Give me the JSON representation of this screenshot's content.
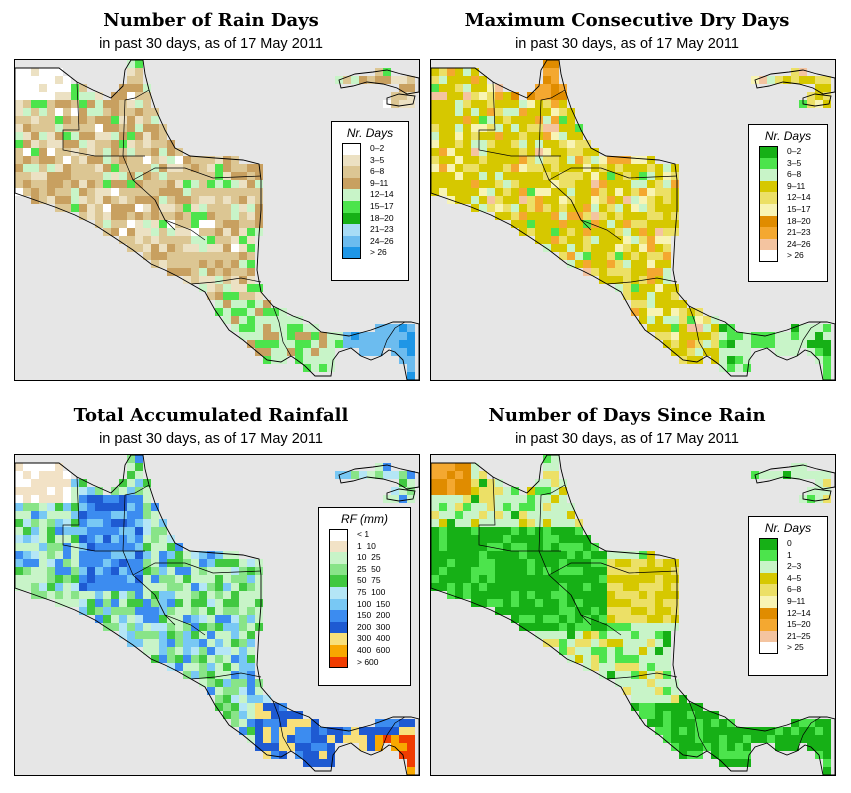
{
  "panels": [
    {
      "id": "rain-days",
      "title": "Number of Rain Days",
      "subtitle": "in past 30 days, as of  17 May 2011",
      "legend": {
        "title": "Nr. Days",
        "items": [
          {
            "label": "0–2",
            "color": "#ffffff"
          },
          {
            "label": "3–5",
            "color": "#ece1c3"
          },
          {
            "label": "6–8",
            "color": "#dcc693"
          },
          {
            "label": "9–11",
            "color": "#c8a060"
          },
          {
            "label": "12–14",
            "color": "#c8f4c8"
          },
          {
            "label": "15–17",
            "color": "#4ce44c"
          },
          {
            "label": "18–20",
            "color": "#16b016"
          },
          {
            "label": "21–23",
            "color": "#a8dcf6"
          },
          {
            "label": "24–26",
            "color": "#6cbcef"
          },
          {
            "label": "> 26",
            "color": "#1e96e6"
          }
        ]
      }
    },
    {
      "id": "dry-days",
      "title": "Maximum Consecutive Dry Days",
      "subtitle": "in past 30 days, as of  17 May 2011",
      "legend": {
        "title": "Nr. Days",
        "items": [
          {
            "label": "0–2",
            "color": "#16b016"
          },
          {
            "label": "3–5",
            "color": "#4ce44c"
          },
          {
            "label": "6–8",
            "color": "#c8f4c8"
          },
          {
            "label": "9–11",
            "color": "#d6c800"
          },
          {
            "label": "12–14",
            "color": "#ece066"
          },
          {
            "label": "15–17",
            "color": "#f8f4b4"
          },
          {
            "label": "18–20",
            "color": "#e08c00"
          },
          {
            "label": "21–23",
            "color": "#f4a830"
          },
          {
            "label": "24–26",
            "color": "#f4c4a0"
          },
          {
            "label": "> 26",
            "color": "#ffffff"
          }
        ]
      }
    },
    {
      "id": "rainfall",
      "title": "Total Accumulated Rainfall",
      "subtitle": "in past 30 days, as of  17 May 2011",
      "legend": {
        "title": "RF (mm)",
        "items": [
          {
            "label": "< 1",
            "color": "#ffffff"
          },
          {
            "label": "1  10",
            "color": "#f2e2c6"
          },
          {
            "label": "10  25",
            "color": "#c8f4c8"
          },
          {
            "label": "25  50",
            "color": "#88e488"
          },
          {
            "label": "50  75",
            "color": "#40c840"
          },
          {
            "label": "75  100",
            "color": "#b4e6f6"
          },
          {
            "label": "100  150",
            "color": "#78c8f4"
          },
          {
            "label": "150  200",
            "color": "#3c8cf0"
          },
          {
            "label": "200  300",
            "color": "#1e5ad2"
          },
          {
            "label": "300  400",
            "color": "#f8e07a"
          },
          {
            "label": "400  600",
            "color": "#f8a800"
          },
          {
            "label": "> 600",
            "color": "#f03c00"
          }
        ]
      }
    },
    {
      "id": "days-since-rain",
      "title": "Number of Days Since Rain",
      "subtitle": "in past 30 days, as of  17 May 2011",
      "legend": {
        "title": "Nr. Days",
        "items": [
          {
            "label": "0",
            "color": "#16b016"
          },
          {
            "label": "1",
            "color": "#4ce44c"
          },
          {
            "label": "2–3",
            "color": "#c8f4c8"
          },
          {
            "label": "4–5",
            "color": "#d6c800"
          },
          {
            "label": "6–8",
            "color": "#ece066"
          },
          {
            "label": "9–11",
            "color": "#f8f4b4"
          },
          {
            "label": "12–14",
            "color": "#e08c00"
          },
          {
            "label": "15–20",
            "color": "#f4a830"
          },
          {
            "label": "21–25",
            "color": "#f4c4a0"
          },
          {
            "label": "> 25",
            "color": "#ffffff"
          }
        ]
      }
    }
  ],
  "colors": {
    "ocean": "#e6e6e6",
    "border": "#000000"
  }
}
